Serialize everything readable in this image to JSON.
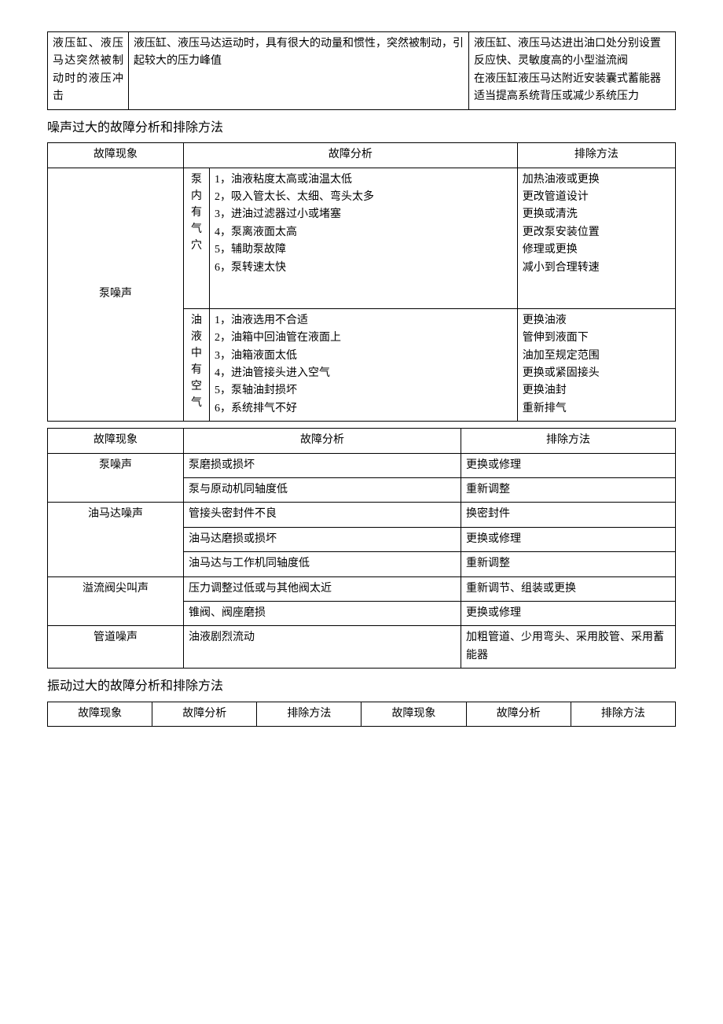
{
  "table1": {
    "row": {
      "c1": "液压缸、液压马达突然被制动时的液压冲击",
      "c2": "液压缸、液压马达运动时，具有很大的动量和惯性，突然被制动，引起较大的压力峰值",
      "c3": "液压缸、液压马达进出油口处分别设置反应快、灵敏度高的小型溢流阀\n在液压缸液压马达附近安装囊式蓄能器\n适当提高系统背压或减少系统压力"
    }
  },
  "section2_title": "噪声过大的故障分析和排除方法",
  "table2": {
    "header": {
      "c1": "故障现象",
      "c2": "故障分析",
      "c3": "排除方法"
    },
    "row1": {
      "phenom": "泵噪声",
      "sub1_label": "泵内有气穴",
      "sub1_items": "1，油液粘度太高或油温太低\n2，吸入管太长、太细、弯头太多\n3，进油过滤器过小或堵塞\n4，泵离液面太高\n5，辅助泵故障\n6，泵转速太快",
      "sub1_fix": "加热油液或更换\n更改管道设计\n更换或清洗\n更改泵安装位置\n修理或更换\n减小到合理转速",
      "sub2_label": "油液中有空气",
      "sub2_items": "1，油液选用不合适\n2，油箱中回油管在液面上\n3，油箱液面太低\n4，进油管接头进入空气\n5，泵轴油封损坏\n6，系统排气不好",
      "sub2_fix": "更换油液\n管伸到液面下\n油加至规定范围\n更换或紧固接头\n更换油封\n重新排气"
    }
  },
  "table3": {
    "header": {
      "c1": "故障现象",
      "c2": "故障分析",
      "c3": "排除方法"
    },
    "rows": [
      {
        "c1": "泵噪声",
        "c2": "泵磨损或损坏",
        "c3": "更换或修理"
      },
      {
        "c1": "",
        "c2": "泵与原动机同轴度低",
        "c3": "重新调整"
      },
      {
        "c1": "油马达噪声",
        "c2": "管接头密封件不良",
        "c3": "换密封件"
      },
      {
        "c1": "",
        "c2": "油马达磨损或损坏",
        "c3": "更换或修理"
      },
      {
        "c1": "",
        "c2": "油马达与工作机同轴度低",
        "c3": "重新调整"
      },
      {
        "c1": "溢流阀尖叫声",
        "c2": "压力调整过低或与其他阀太近",
        "c3": "重新调节、组装或更换"
      },
      {
        "c1": "",
        "c2": "锥阀、阀座磨损",
        "c3": "更换或修理"
      },
      {
        "c1": "管道噪声",
        "c2": "油液剧烈流动",
        "c3": "加粗管道、少用弯头、采用胶管、采用蓄能器"
      }
    ]
  },
  "section3_title": "振动过大的故障分析和排除方法",
  "table4": {
    "header": {
      "c1": "故障现象",
      "c2": "故障分析",
      "c3": "排除方法",
      "c4": "故障现象",
      "c5": "故障分析",
      "c6": "排除方法"
    }
  }
}
